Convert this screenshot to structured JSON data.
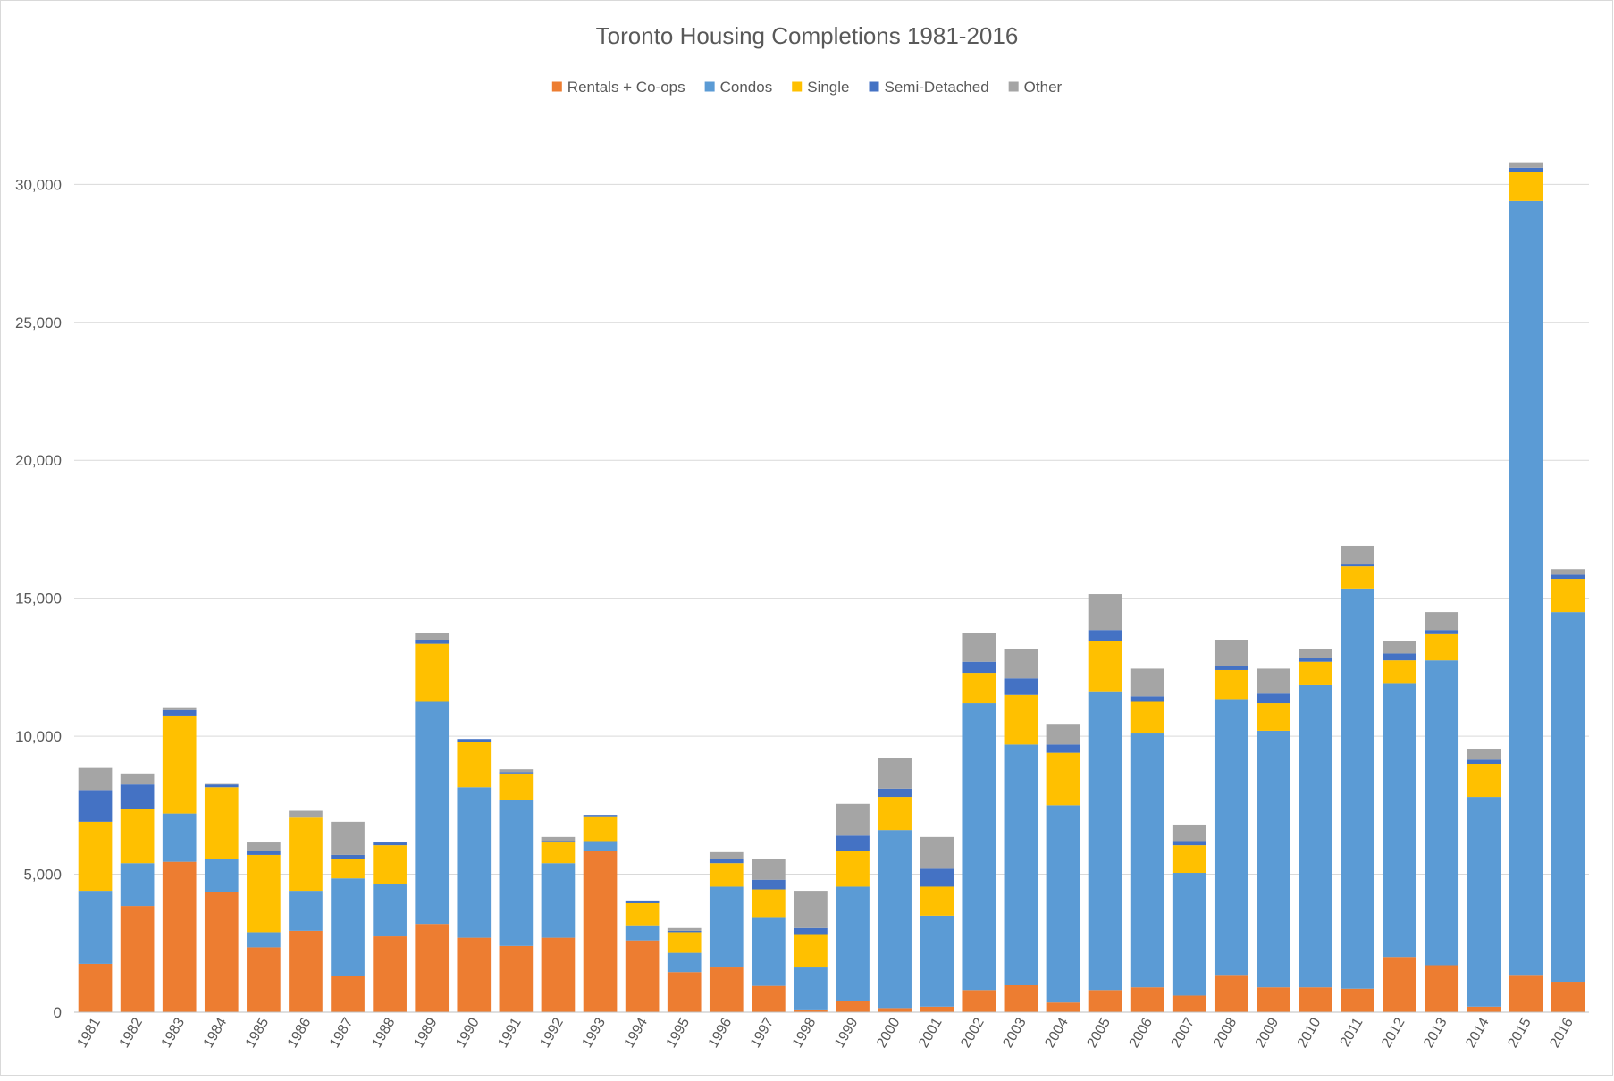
{
  "chart_data": {
    "type": "bar",
    "stacked": true,
    "title": "Toronto Housing Completions 1981-2016",
    "xlabel": "",
    "ylabel": "",
    "ylim": [
      0,
      31500
    ],
    "yticks": [
      0,
      5000,
      10000,
      15000,
      20000,
      25000,
      30000
    ],
    "ytick_labels": [
      "0",
      "5,000",
      "10,000",
      "15,000",
      "20,000",
      "25,000",
      "30,000"
    ],
    "grid": true,
    "legend_position": "top-center",
    "categories": [
      "1981",
      "1982",
      "1983",
      "1984",
      "1985",
      "1986",
      "1987",
      "1988",
      "1989",
      "1990",
      "1991",
      "1992",
      "1993",
      "1994",
      "1995",
      "1996",
      "1997",
      "1998",
      "1999",
      "2000",
      "2001",
      "2002",
      "2003",
      "2004",
      "2005",
      "2006",
      "2007",
      "2008",
      "2009",
      "2010",
      "2011",
      "2012",
      "2013",
      "2014",
      "2015",
      "2016"
    ],
    "series": [
      {
        "name": "Rentals + Co-ops",
        "color": "#ED7D31",
        "values": [
          1750,
          3850,
          5450,
          4350,
          2350,
          2950,
          1300,
          2750,
          3200,
          2700,
          2400,
          2700,
          5850,
          2600,
          1450,
          1650,
          950,
          100,
          400,
          150,
          200,
          800,
          1000,
          350,
          800,
          900,
          600,
          1350,
          900,
          900,
          850,
          2000,
          1700,
          200,
          1350,
          1100
        ]
      },
      {
        "name": "Condos",
        "color": "#5B9BD5",
        "values": [
          2650,
          1550,
          1750,
          1200,
          550,
          1450,
          3550,
          1900,
          8050,
          5450,
          5300,
          2700,
          350,
          550,
          700,
          2900,
          2500,
          1550,
          4150,
          6450,
          3300,
          10400,
          8700,
          7150,
          10800,
          9200,
          4450,
          10000,
          9300,
          10950,
          14500,
          9900,
          11050,
          7600,
          28050,
          13400
        ]
      },
      {
        "name": "Single",
        "color": "#FFC000",
        "values": [
          2500,
          1950,
          3550,
          2600,
          2800,
          2650,
          700,
          1400,
          2100,
          1650,
          950,
          750,
          900,
          800,
          750,
          850,
          1000,
          1150,
          1300,
          1200,
          1050,
          1100,
          1800,
          1900,
          1850,
          1150,
          1000,
          1050,
          1000,
          850,
          800,
          850,
          950,
          1200,
          1050,
          1200
        ]
      },
      {
        "name": "Semi-Detached",
        "color": "#4472C4",
        "values": [
          1150,
          900,
          200,
          100,
          150,
          0,
          150,
          100,
          150,
          100,
          50,
          50,
          50,
          100,
          50,
          150,
          350,
          250,
          550,
          300,
          650,
          400,
          600,
          300,
          400,
          200,
          150,
          150,
          350,
          150,
          100,
          250,
          150,
          150,
          150,
          150
        ]
      },
      {
        "name": "Other",
        "color": "#A5A5A5",
        "values": [
          800,
          400,
          100,
          50,
          300,
          250,
          1200,
          0,
          250,
          0,
          100,
          150,
          0,
          0,
          100,
          250,
          750,
          1350,
          1150,
          1100,
          1150,
          1050,
          1050,
          750,
          1300,
          1000,
          600,
          950,
          900,
          300,
          650,
          450,
          650,
          400,
          200,
          200
        ]
      }
    ]
  }
}
